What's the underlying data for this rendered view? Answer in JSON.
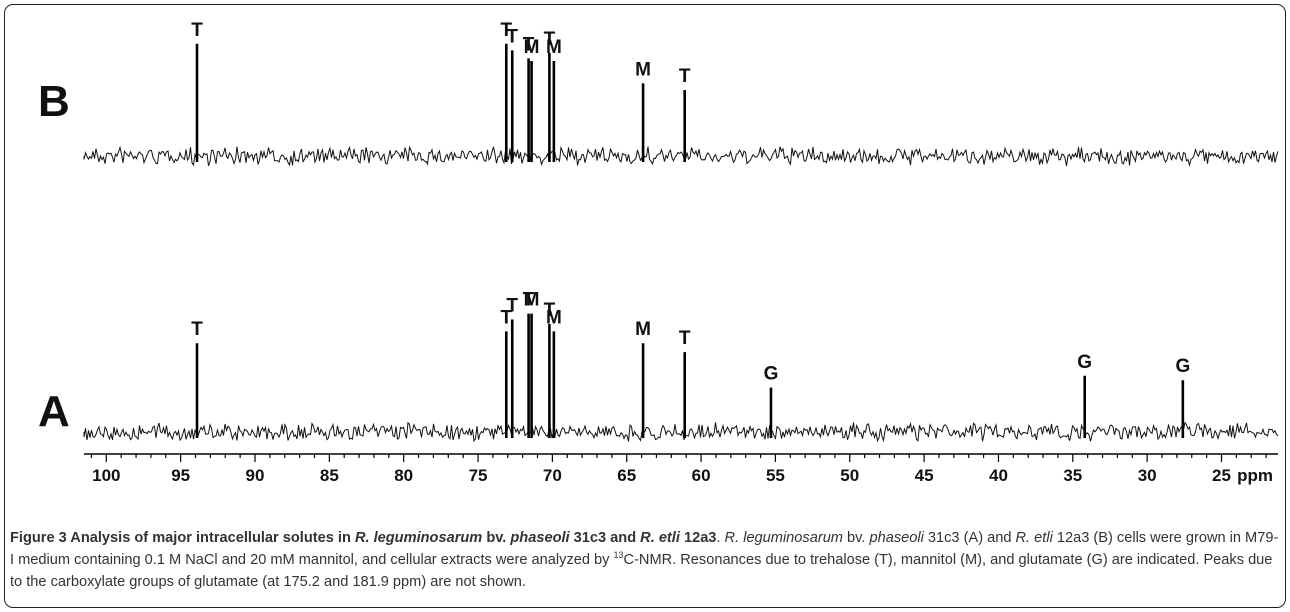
{
  "chart_data": {
    "type": "line",
    "xlabel": "ppm",
    "xlim": [
      101.5,
      21.2
    ],
    "x_ticks": [
      "100",
      "95",
      "90",
      "85",
      "80",
      "75",
      "70",
      "65",
      "60",
      "55",
      "50",
      "45",
      "40",
      "35",
      "30",
      "25"
    ],
    "panels": [
      {
        "label": "B",
        "peaks": [
          {
            "x": 93.9,
            "height": 0.85,
            "label": "T"
          },
          {
            "x": 73.1,
            "height": 0.85,
            "label": "T"
          },
          {
            "x": 72.7,
            "height": 0.8,
            "label": "T"
          },
          {
            "x": 71.6,
            "height": 0.74,
            "label": "T"
          },
          {
            "x": 71.4,
            "height": 0.72,
            "label": "M"
          },
          {
            "x": 70.2,
            "height": 0.78,
            "label": "T"
          },
          {
            "x": 69.9,
            "height": 0.72,
            "label": "M"
          },
          {
            "x": 63.9,
            "height": 0.55,
            "label": "M"
          },
          {
            "x": 61.1,
            "height": 0.5,
            "label": "T"
          }
        ]
      },
      {
        "label": "A",
        "peaks": [
          {
            "x": 93.9,
            "height": 0.6,
            "label": "T"
          },
          {
            "x": 73.1,
            "height": 0.68,
            "label": "T"
          },
          {
            "x": 72.7,
            "height": 0.76,
            "label": "T"
          },
          {
            "x": 71.6,
            "height": 0.8,
            "label": "T"
          },
          {
            "x": 71.4,
            "height": 0.8,
            "label": "M"
          },
          {
            "x": 70.2,
            "height": 0.73,
            "label": "T"
          },
          {
            "x": 69.9,
            "height": 0.68,
            "label": "M"
          },
          {
            "x": 63.9,
            "height": 0.6,
            "label": "M"
          },
          {
            "x": 61.1,
            "height": 0.54,
            "label": "T"
          },
          {
            "x": 55.3,
            "height": 0.3,
            "label": "G"
          },
          {
            "x": 34.2,
            "height": 0.38,
            "label": "G"
          },
          {
            "x": 27.6,
            "height": 0.35,
            "label": "G"
          }
        ]
      }
    ]
  },
  "caption": {
    "figure_label": "Figure 3",
    "title_1": " Analysis of major intracellular solutes in ",
    "title_2": "R. leguminosarum",
    "title_3": " bv. ",
    "title_4": "phaseoli",
    "title_5": " 31c3 and ",
    "title_6": "R. etli",
    "title_7": " 12a3",
    "body_1": ". ",
    "body_2": "R. leguminosarum",
    "body_3": " bv. ",
    "body_4": "phaseoli",
    "body_5": " 31c3 (A) and ",
    "body_6": "R. etli",
    "body_7": " 12a3 (B) cells were grown in M79-I medium containing 0.1 M NaCl and 20 mM mannitol, and cellular extracts were analyzed by ",
    "body_sup": "13",
    "body_8": "C-NMR. Resonances due to trehalose (T), mannitol (M), and glutamate (G) are indicated. Peaks due to the carboxylate groups of glutamate (at 175.2 and 181.9 ppm) are not shown."
  }
}
